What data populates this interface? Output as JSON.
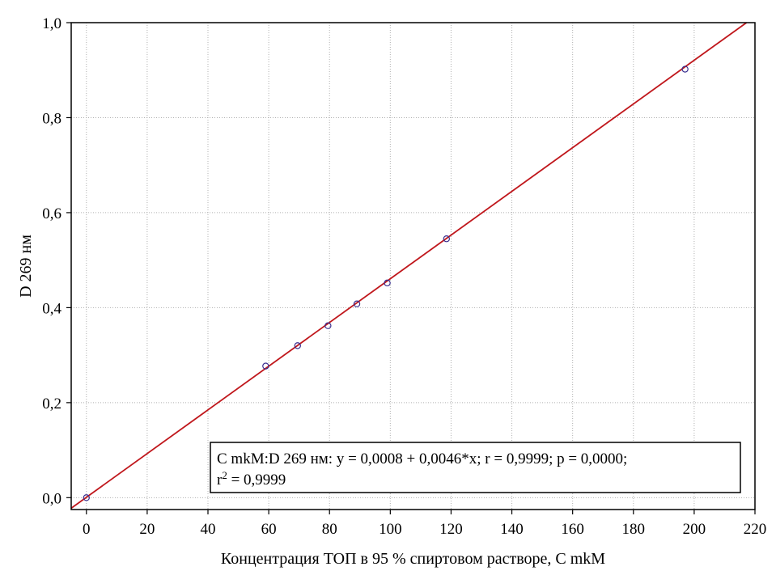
{
  "chart_data": {
    "type": "scatter",
    "xlabel": "Концентрация ТОП в 95 % спиртовом растворе, С mkM",
    "ylabel": "D 269 нм",
    "xlim": [
      -5,
      220
    ],
    "ylim": [
      -0.025,
      1.0
    ],
    "x_ticks": [
      0,
      20,
      40,
      60,
      80,
      100,
      120,
      140,
      160,
      180,
      200,
      220
    ],
    "x_tick_labels": [
      "0",
      "20",
      "40",
      "60",
      "80",
      "100",
      "120",
      "140",
      "160",
      "180",
      "200",
      "220"
    ],
    "y_ticks": [
      0.0,
      0.2,
      0.4,
      0.6,
      0.8,
      1.0
    ],
    "y_tick_labels": [
      "0,0",
      "0,2",
      "0,4",
      "0,6",
      "0,8",
      "1,0"
    ],
    "grid": true,
    "points": {
      "x": [
        0,
        59,
        69.5,
        79.5,
        89,
        99,
        118.5,
        197
      ],
      "y": [
        0.0,
        0.277,
        0.32,
        0.362,
        0.408,
        0.452,
        0.545,
        0.902
      ]
    },
    "fit_line": {
      "intercept": 0.0008,
      "slope": 0.0046
    },
    "annotation": {
      "line1": "C mkM:D 269 нм: y = 0,0008 + 0,0046*x; r = 0,9999; p = 0,0000;",
      "line2_prefix": "r",
      "line2_sup": "2",
      "line2_suffix": " = 0,9999"
    },
    "colors": {
      "marker": "#3a2f8f",
      "line": "#c0171c"
    }
  }
}
